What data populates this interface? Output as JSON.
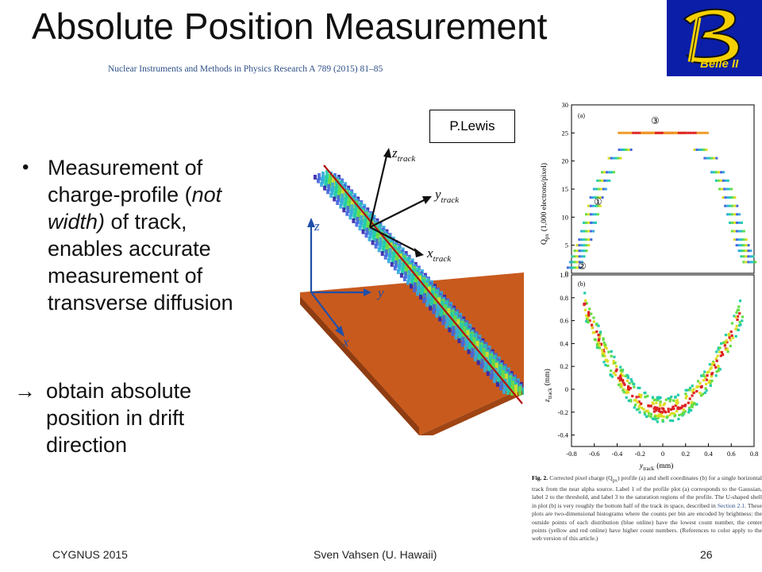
{
  "slide": {
    "title": "Absolute Position Measurement",
    "citation": "Nuclear Instruments and Methods in Physics Research A 789 (2015) 81–85"
  },
  "logo": {
    "letter": "B",
    "text": "Belle II",
    "icon": "belle-ii-logo",
    "bg_color": "#0a1ea8",
    "letter_color": "#f5d000"
  },
  "bullets": {
    "item1": {
      "line1": "Measurement of",
      "line2": "charge-profile (",
      "line2_italic": "not",
      "line3_italic": "width)",
      "line3_rest": " of track,",
      "line4": "enables accurate",
      "line5": "measurement of",
      "line6": "transverse diffusion"
    },
    "arrow": {
      "symbol": "",
      "line1": "obtain absolute",
      "line2": "position in drift",
      "line3": "direction"
    }
  },
  "render3d": {
    "labels": {
      "z_track": "z",
      "z_track_sub": "track",
      "y_track": "y",
      "y_track_sub": "track",
      "x_track": "x",
      "x_track_sub": "track",
      "z": "z",
      "y": "y",
      "x": "x"
    },
    "plate_color": "#c85a1e",
    "track_line_color": "#b01010"
  },
  "credit": {
    "text": "P.Lewis"
  },
  "chart_data": [
    {
      "type": "scatter",
      "panel_label": "(a)",
      "ylabel": "Q",
      "ylabel_sub": "px",
      "ylabel_rest": "(1,000 electrons/pixel)",
      "ylim": [
        0,
        30
      ],
      "y_ticks": [
        "0",
        "5",
        "10",
        "15",
        "20",
        "25",
        "30"
      ],
      "annotations": [
        "①",
        "②",
        "③"
      ],
      "profile_points": [
        [
          -0.78,
          1.0
        ],
        [
          -0.76,
          2.0
        ],
        [
          -0.74,
          3.0
        ],
        [
          -0.72,
          4.0
        ],
        [
          -0.7,
          5.0
        ],
        [
          -0.68,
          6.0
        ],
        [
          -0.66,
          7.5
        ],
        [
          -0.64,
          9.0
        ],
        [
          -0.62,
          10.5
        ],
        [
          -0.6,
          12.0
        ],
        [
          -0.58,
          13.5
        ],
        [
          -0.55,
          15.0
        ],
        [
          -0.52,
          16.5
        ],
        [
          -0.48,
          18.0
        ],
        [
          -0.42,
          20.5
        ],
        [
          -0.33,
          22.0
        ],
        [
          -0.2,
          25.0
        ],
        [
          0.0,
          25.0
        ],
        [
          0.2,
          25.0
        ],
        [
          0.33,
          22.0
        ],
        [
          0.42,
          20.5
        ],
        [
          0.48,
          18.0
        ],
        [
          0.52,
          16.5
        ],
        [
          0.55,
          15.0
        ],
        [
          0.58,
          13.5
        ],
        [
          0.6,
          12.0
        ],
        [
          0.62,
          10.5
        ],
        [
          0.64,
          9.0
        ],
        [
          0.66,
          7.5
        ],
        [
          0.68,
          6.0
        ],
        [
          0.7,
          5.0
        ],
        [
          0.72,
          4.0
        ],
        [
          0.74,
          3.0
        ],
        [
          0.76,
          2.0
        ]
      ]
    },
    {
      "type": "heatmap",
      "panel_label": "(b)",
      "xlabel": "y",
      "xlabel_sub": "track",
      "xlabel_rest": "(mm)",
      "ylabel": "z",
      "ylabel_sub": "track",
      "ylabel_rest": "(mm)",
      "xlim": [
        -0.8,
        0.8
      ],
      "ylim": [
        -0.5,
        1.0
      ],
      "x_ticks": [
        "-0.8",
        "-0.6",
        "-0.4",
        "-0.2",
        "0",
        "0.2",
        "0.4",
        "0.6",
        "0.8"
      ],
      "y_ticks": [
        "1.0",
        "0.8",
        "0.6",
        "0.4",
        "0.2",
        "0",
        "-0.2",
        "-0.4"
      ],
      "shape": "U-shaped shell, bottom near z=-0.15 at y=0, arms rising to z≈0.9 at y≈±0.65"
    }
  ],
  "caption": {
    "lead": "Fig. 2.",
    "text1": " Corrected pixel charge (Q",
    "sub": "px",
    "text2": ") profile (a) and shell coordinates (b) for a single horizontal track from the near alpha source. Label 1 of the profile plot (a) corresponds to the Gaussian, label 2 to the threshold, and label 3 to the saturation regions of the profile. The U-shaped shell in plot (b) is very roughly the bottom half of the track in space, described in ",
    "link": "Section 2.1",
    "text3": ". These plots are two-dimensional histograms where the counts per bin are encoded by brightness: the outside points of each distribution (blue online) have the lowest count number, the center points (yellow and red online) have higher count numbers. (References to color apply to the web version of this article.)"
  },
  "footer": {
    "left": "CYGNUS 2015",
    "center": "Sven Vahsen (U. Hawaii)",
    "right": "26"
  }
}
